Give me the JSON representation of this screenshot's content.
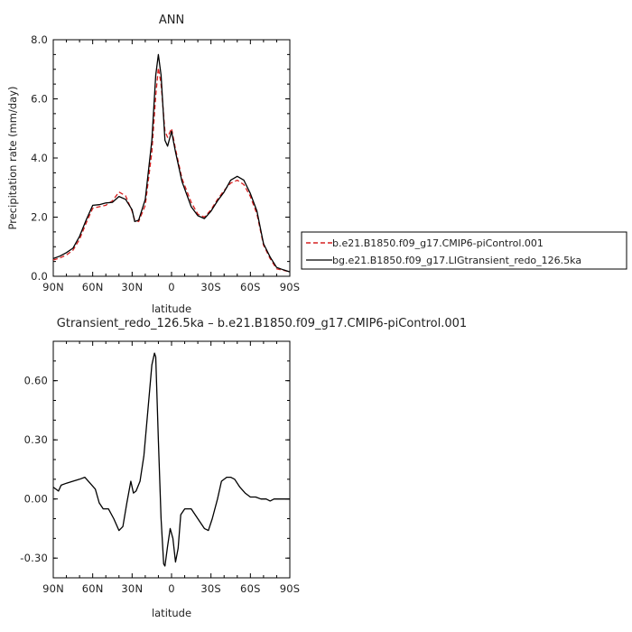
{
  "chart_data": [
    {
      "type": "line",
      "title": "ANN",
      "xlabel": "latitude",
      "ylabel": "Precipitation rate (mm/day)",
      "xlim": [
        90,
        -90
      ],
      "ylim": [
        0,
        8
      ],
      "x_ticks": [
        "90N",
        "60N",
        "30N",
        "0",
        "30S",
        "60S",
        "90S"
      ],
      "y_ticks": [
        "0.0",
        "2.0",
        "4.0",
        "6.0",
        "8.0"
      ],
      "legend_position": "right",
      "series": [
        {
          "name": "b.e21.B1850.f09_g17.CMIP6-piControl.001",
          "color": "#d62020",
          "style": "dashed",
          "points": [
            [
              90,
              0.55
            ],
            [
              85,
              0.62
            ],
            [
              80,
              0.72
            ],
            [
              75,
              0.88
            ],
            [
              70,
              1.25
            ],
            [
              65,
              1.8
            ],
            [
              60,
              2.3
            ],
            [
              55,
              2.35
            ],
            [
              50,
              2.4
            ],
            [
              45,
              2.55
            ],
            [
              40,
              2.85
            ],
            [
              35,
              2.72
            ],
            [
              30,
              2.2
            ],
            [
              28,
              1.9
            ],
            [
              25,
              1.85
            ],
            [
              20,
              2.4
            ],
            [
              15,
              4.2
            ],
            [
              12,
              6.1
            ],
            [
              10,
              7.05
            ],
            [
              8,
              6.5
            ],
            [
              5,
              4.9
            ],
            [
              3,
              4.7
            ],
            [
              0,
              5.0
            ],
            [
              -3,
              4.3
            ],
            [
              -8,
              3.3
            ],
            [
              -15,
              2.5
            ],
            [
              -20,
              2.1
            ],
            [
              -25,
              2.0
            ],
            [
              -30,
              2.25
            ],
            [
              -35,
              2.6
            ],
            [
              -40,
              2.9
            ],
            [
              -45,
              3.15
            ],
            [
              -50,
              3.25
            ],
            [
              -55,
              3.1
            ],
            [
              -60,
              2.7
            ],
            [
              -65,
              2.1
            ],
            [
              -70,
              1.05
            ],
            [
              -75,
              0.6
            ],
            [
              -80,
              0.25
            ],
            [
              -85,
              0.2
            ],
            [
              -90,
              0.15
            ]
          ]
        },
        {
          "name": "bg.e21.B1850.f09_g17.LIGtransient_redo_126.5ka",
          "color": "#000000",
          "style": "solid",
          "points": [
            [
              90,
              0.6
            ],
            [
              85,
              0.68
            ],
            [
              80,
              0.8
            ],
            [
              75,
              0.95
            ],
            [
              70,
              1.35
            ],
            [
              65,
              1.9
            ],
            [
              60,
              2.4
            ],
            [
              55,
              2.42
            ],
            [
              50,
              2.48
            ],
            [
              45,
              2.5
            ],
            [
              40,
              2.7
            ],
            [
              35,
              2.6
            ],
            [
              30,
              2.25
            ],
            [
              28,
              1.85
            ],
            [
              25,
              1.9
            ],
            [
              20,
              2.6
            ],
            [
              15,
              4.6
            ],
            [
              12,
              6.8
            ],
            [
              10,
              7.5
            ],
            [
              8,
              6.8
            ],
            [
              5,
              4.6
            ],
            [
              3,
              4.4
            ],
            [
              0,
              4.9
            ],
            [
              -3,
              4.2
            ],
            [
              -8,
              3.2
            ],
            [
              -15,
              2.35
            ],
            [
              -20,
              2.05
            ],
            [
              -25,
              1.95
            ],
            [
              -30,
              2.2
            ],
            [
              -35,
              2.55
            ],
            [
              -40,
              2.85
            ],
            [
              -45,
              3.25
            ],
            [
              -50,
              3.38
            ],
            [
              -55,
              3.25
            ],
            [
              -60,
              2.8
            ],
            [
              -65,
              2.2
            ],
            [
              -70,
              1.1
            ],
            [
              -75,
              0.65
            ],
            [
              -80,
              0.3
            ],
            [
              -85,
              0.22
            ],
            [
              -90,
              0.15
            ]
          ]
        }
      ]
    },
    {
      "type": "line",
      "title": "Gtransient_redo_126.5ka – b.e21.B1850.f09_g17.CMIP6-piControl.001",
      "xlabel": "latitude",
      "ylabel": "",
      "xlim": [
        90,
        -90
      ],
      "ylim": [
        -0.4,
        0.8
      ],
      "x_ticks": [
        "90N",
        "60N",
        "30N",
        "0",
        "30S",
        "60S",
        "90S"
      ],
      "y_ticks": [
        "-0.30",
        "0.00",
        "0.30",
        "0.60"
      ],
      "series": [
        {
          "color": "#000000",
          "style": "solid",
          "points": [
            [
              90,
              0.06
            ],
            [
              86,
              0.04
            ],
            [
              84,
              0.07
            ],
            [
              80,
              0.08
            ],
            [
              75,
              0.09
            ],
            [
              70,
              0.1
            ],
            [
              66,
              0.11
            ],
            [
              62,
              0.08
            ],
            [
              58,
              0.05
            ],
            [
              55,
              -0.02
            ],
            [
              52,
              -0.05
            ],
            [
              48,
              -0.05
            ],
            [
              44,
              -0.1
            ],
            [
              40,
              -0.16
            ],
            [
              37,
              -0.14
            ],
            [
              34,
              -0.02
            ],
            [
              31,
              0.09
            ],
            [
              29,
              0.03
            ],
            [
              27,
              0.04
            ],
            [
              24,
              0.09
            ],
            [
              21,
              0.22
            ],
            [
              18,
              0.45
            ],
            [
              15,
              0.68
            ],
            [
              13,
              0.74
            ],
            [
              12,
              0.72
            ],
            [
              10,
              0.3
            ],
            [
              8,
              -0.1
            ],
            [
              6,
              -0.33
            ],
            [
              5,
              -0.34
            ],
            [
              3,
              -0.24
            ],
            [
              1,
              -0.15
            ],
            [
              -1,
              -0.2
            ],
            [
              -3,
              -0.32
            ],
            [
              -5,
              -0.25
            ],
            [
              -7,
              -0.08
            ],
            [
              -10,
              -0.05
            ],
            [
              -15,
              -0.05
            ],
            [
              -20,
              -0.1
            ],
            [
              -25,
              -0.15
            ],
            [
              -28,
              -0.16
            ],
            [
              -31,
              -0.1
            ],
            [
              -35,
              0.0
            ],
            [
              -38,
              0.09
            ],
            [
              -42,
              0.11
            ],
            [
              -45,
              0.11
            ],
            [
              -48,
              0.1
            ],
            [
              -52,
              0.06
            ],
            [
              -56,
              0.03
            ],
            [
              -60,
              0.01
            ],
            [
              -64,
              0.01
            ],
            [
              -68,
              0.0
            ],
            [
              -72,
              0.0
            ],
            [
              -75,
              -0.01
            ],
            [
              -78,
              0.0
            ],
            [
              -82,
              0.0
            ],
            [
              -86,
              0.0
            ],
            [
              -90,
              0.0
            ]
          ]
        }
      ]
    }
  ]
}
